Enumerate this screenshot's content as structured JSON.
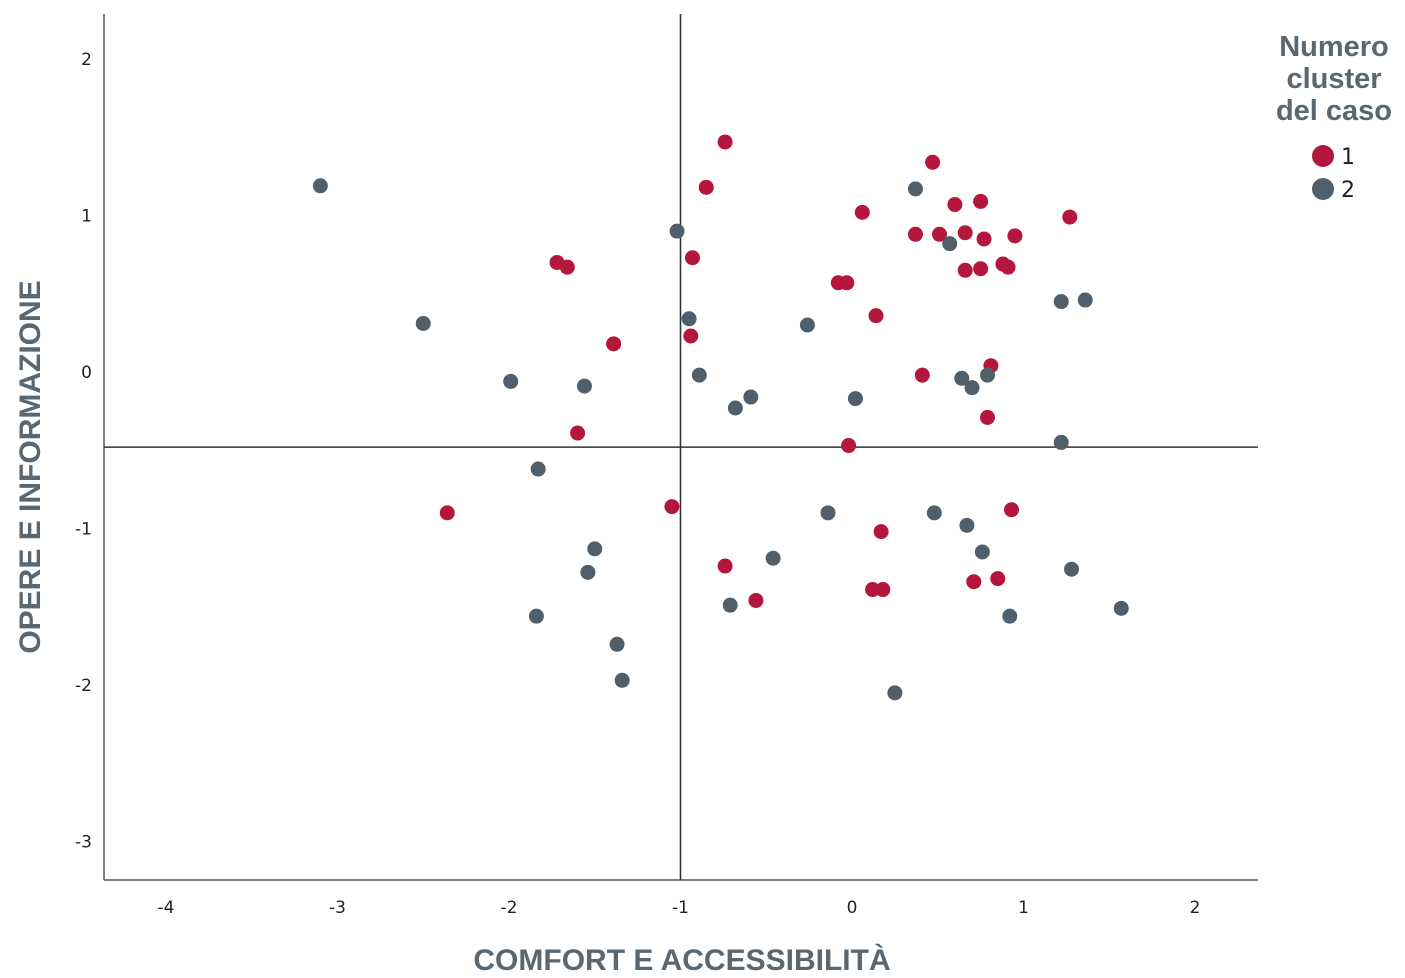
{
  "chart_data": {
    "type": "scatter",
    "xlabel": "COMFORT E ACCESSIBILITÀ",
    "ylabel": "OPERE E INFORMAZIONE",
    "xlim": [
      -4.35,
      2.35
    ],
    "ylim": [
      -3.3,
      2.3
    ],
    "xticks": [
      -4,
      -3,
      -2,
      -1,
      0,
      1,
      2
    ],
    "yticks": [
      -3,
      -2,
      -1,
      0,
      1,
      2
    ],
    "reference_lines": {
      "x": -1.0,
      "y": -0.48
    },
    "grid": false,
    "legend": {
      "title": "Numero cluster del caso",
      "title_lines": [
        "Numero",
        "cluster",
        "del caso"
      ],
      "position": "top-right"
    },
    "series": [
      {
        "name": "1",
        "color": "#b5163b",
        "points": [
          [
            -0.74,
            1.47
          ],
          [
            -0.85,
            1.18
          ],
          [
            -0.93,
            0.73
          ],
          [
            -0.94,
            0.23
          ],
          [
            -1.72,
            0.7
          ],
          [
            -1.66,
            0.67
          ],
          [
            -1.39,
            0.18
          ],
          [
            -1.6,
            -0.39
          ],
          [
            -2.36,
            -0.9
          ],
          [
            -1.05,
            -0.86
          ],
          [
            -0.74,
            -1.24
          ],
          [
            -0.56,
            -1.46
          ],
          [
            0.06,
            1.02
          ],
          [
            -0.08,
            0.57
          ],
          [
            -0.03,
            0.57
          ],
          [
            0.14,
            0.36
          ],
          [
            -0.02,
            -0.47
          ],
          [
            0.17,
            -1.02
          ],
          [
            0.12,
            -1.39
          ],
          [
            0.18,
            -1.39
          ],
          [
            0.37,
            0.88
          ],
          [
            0.47,
            1.34
          ],
          [
            0.51,
            0.88
          ],
          [
            0.6,
            1.07
          ],
          [
            0.66,
            0.89
          ],
          [
            0.75,
            1.09
          ],
          [
            0.77,
            0.85
          ],
          [
            0.66,
            0.65
          ],
          [
            0.75,
            0.66
          ],
          [
            0.88,
            0.69
          ],
          [
            0.91,
            0.67
          ],
          [
            0.95,
            0.87
          ],
          [
            1.27,
            0.99
          ],
          [
            0.41,
            -0.02
          ],
          [
            0.81,
            0.04
          ],
          [
            0.79,
            -0.29
          ],
          [
            0.93,
            -0.88
          ],
          [
            0.71,
            -1.34
          ],
          [
            0.85,
            -1.32
          ]
        ]
      },
      {
        "name": "2",
        "color": "#4f5f6b",
        "points": [
          [
            -3.1,
            1.19
          ],
          [
            -2.5,
            0.31
          ],
          [
            -1.99,
            -0.06
          ],
          [
            -1.56,
            -0.09
          ],
          [
            -1.83,
            -0.62
          ],
          [
            -1.5,
            -1.13
          ],
          [
            -1.54,
            -1.28
          ],
          [
            -1.84,
            -1.56
          ],
          [
            -1.37,
            -1.74
          ],
          [
            -1.34,
            -1.97
          ],
          [
            -1.02,
            0.9
          ],
          [
            -0.95,
            0.34
          ],
          [
            -0.89,
            -0.02
          ],
          [
            -0.68,
            -0.23
          ],
          [
            -0.59,
            -0.16
          ],
          [
            -0.46,
            -1.19
          ],
          [
            -0.71,
            -1.49
          ],
          [
            -0.26,
            0.3
          ],
          [
            0.02,
            -0.17
          ],
          [
            -0.14,
            -0.9
          ],
          [
            0.25,
            -2.05
          ],
          [
            0.37,
            1.17
          ],
          [
            0.57,
            0.82
          ],
          [
            0.64,
            -0.04
          ],
          [
            0.7,
            -0.1
          ],
          [
            0.79,
            -0.02
          ],
          [
            0.48,
            -0.9
          ],
          [
            0.67,
            -0.98
          ],
          [
            0.76,
            -1.15
          ],
          [
            0.92,
            -1.56
          ],
          [
            1.22,
            0.45
          ],
          [
            1.36,
            0.46
          ],
          [
            1.22,
            -0.45
          ],
          [
            1.28,
            -1.26
          ],
          [
            1.57,
            -1.51
          ]
        ]
      }
    ]
  }
}
